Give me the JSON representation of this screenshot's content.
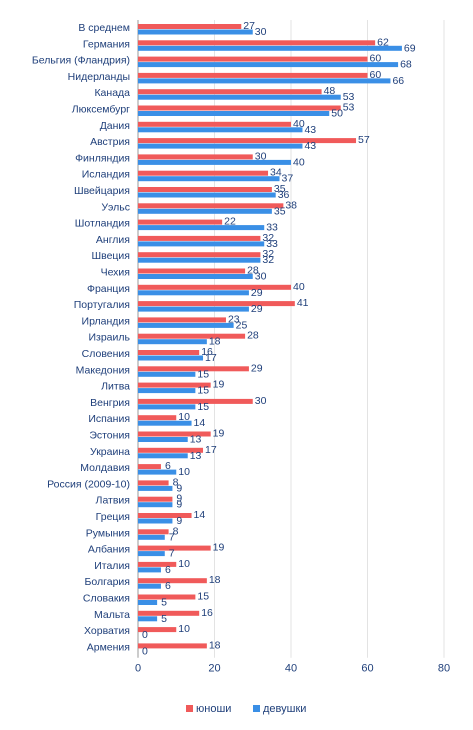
{
  "chart_data": {
    "type": "bar",
    "orientation": "horizontal",
    "categories": [
      "В среднем",
      "Германия",
      "Бельгия (Фландрия)",
      "Нидерланды",
      "Канада",
      "Люксембург",
      "Дания",
      "Австрия",
      "Финляндия",
      "Исландия",
      "Швейцария",
      "Уэльс",
      "Шотландия",
      "Англия",
      "Швеция",
      "Чехия",
      "Франция",
      "Португалия",
      "Ирландия",
      "Израиль",
      "Словения",
      "Македония",
      "Литва",
      "Венгрия",
      "Испания",
      "Эстония",
      "Украина",
      "Молдавия",
      "Россия (2009-10)",
      "Латвия",
      "Греция",
      "Румыния",
      "Албания",
      "Италия",
      "Болгария",
      "Словакия",
      "Мальта",
      "Хорватия",
      "Армения"
    ],
    "series": [
      {
        "name": "юноши",
        "color": "#f05a5a",
        "values": [
          27,
          62,
          60,
          60,
          48,
          53,
          40,
          57,
          30,
          34,
          35,
          38,
          22,
          32,
          32,
          28,
          40,
          41,
          23,
          28,
          16,
          29,
          19,
          30,
          10,
          19,
          17,
          6,
          8,
          9,
          14,
          8,
          19,
          10,
          18,
          15,
          16,
          10,
          18
        ]
      },
      {
        "name": "девушки",
        "color": "#3a8fe6",
        "values": [
          30,
          69,
          68,
          66,
          53,
          50,
          43,
          43,
          40,
          37,
          36,
          35,
          33,
          33,
          32,
          30,
          29,
          29,
          25,
          18,
          17,
          15,
          15,
          15,
          14,
          13,
          13,
          10,
          9,
          9,
          9,
          7,
          7,
          6,
          6,
          5,
          5,
          0,
          0
        ]
      }
    ],
    "xlim": [
      0,
      80
    ],
    "xticks": [
      "0",
      "20",
      "40",
      "60",
      "80"
    ],
    "grid": true,
    "legend": "bottom"
  }
}
